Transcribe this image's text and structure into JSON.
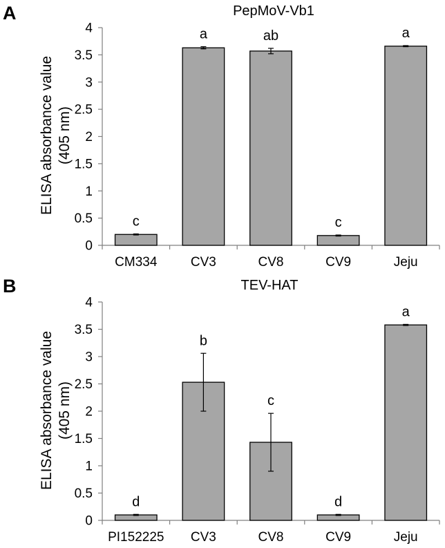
{
  "chart_data": [
    {
      "type": "bar",
      "panel": "A",
      "title": "PepMoV-Vb1",
      "ylabel_line1": "ELISA absorbance value",
      "ylabel_line2": "(405 nm)",
      "xlabel": "",
      "ylim": [
        0,
        4
      ],
      "yticks": [
        0,
        0.5,
        1,
        1.5,
        2,
        2.5,
        3,
        3.5,
        4
      ],
      "ytick_labels": [
        "0",
        "0.5",
        "1",
        "1.5",
        "2",
        "2.5",
        "3",
        "3.5",
        "4"
      ],
      "categories": [
        "CM334",
        "CV3",
        "CV8",
        "CV9",
        "Jeju"
      ],
      "values": [
        0.2,
        3.63,
        3.57,
        0.18,
        3.66
      ],
      "errors": [
        0.01,
        0.02,
        0.05,
        0.01,
        0.01
      ],
      "significance": [
        "c",
        "a",
        "ab",
        "c",
        "a"
      ],
      "bar_color": "#a6a6a6",
      "grid": false
    },
    {
      "type": "bar",
      "panel": "B",
      "title": "TEV-HAT",
      "ylabel_line1": "ELISA absorbance value",
      "ylabel_line2": "(405 nm)",
      "xlabel": "",
      "ylim": [
        0,
        4
      ],
      "yticks": [
        0,
        0.5,
        1,
        1.5,
        2,
        2.5,
        3,
        3.5,
        4
      ],
      "ytick_labels": [
        "0",
        "0.5",
        "1",
        "1.5",
        "2",
        "2.5",
        "3",
        "3.5",
        "4"
      ],
      "categories": [
        "PI152225",
        "CV3",
        "CV8",
        "CV9",
        "Jeju"
      ],
      "values": [
        0.1,
        2.53,
        1.43,
        0.1,
        3.58
      ],
      "errors": [
        0.01,
        0.53,
        0.53,
        0.01,
        0.01
      ],
      "significance": [
        "d",
        "b",
        "c",
        "d",
        "a"
      ],
      "bar_color": "#a6a6a6",
      "grid": false
    }
  ]
}
